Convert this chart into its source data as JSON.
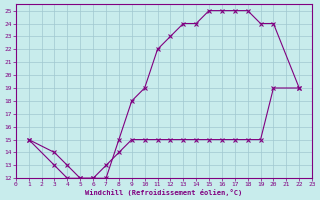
{
  "xlabel": "Windchill (Refroidissement éolien,°C)",
  "bg_color": "#c8ecec",
  "line_color": "#800080",
  "grid_color": "#a0c8d0",
  "xlim": [
    0,
    23
  ],
  "ylim": [
    12,
    25.5
  ],
  "xticks": [
    0,
    1,
    2,
    3,
    4,
    5,
    6,
    7,
    8,
    9,
    10,
    11,
    12,
    13,
    14,
    15,
    16,
    17,
    18,
    19,
    20,
    21,
    22,
    23
  ],
  "yticks": [
    12,
    13,
    14,
    15,
    16,
    17,
    18,
    19,
    20,
    21,
    22,
    23,
    24,
    25
  ],
  "upper_x": [
    1,
    3,
    4,
    5,
    6,
    7,
    8,
    9,
    10,
    11,
    12,
    13,
    14,
    15,
    16,
    17,
    18,
    19,
    20,
    22
  ],
  "upper_y": [
    15,
    14,
    13,
    12,
    12,
    12,
    15,
    18,
    19,
    22,
    23,
    24,
    24,
    25,
    25,
    25,
    25,
    24,
    24,
    19
  ],
  "lower_x": [
    1,
    3,
    4,
    5,
    6,
    7,
    8,
    9,
    10,
    11,
    12,
    13,
    14,
    15,
    16,
    17,
    18,
    19,
    20,
    22
  ],
  "lower_y": [
    15,
    13,
    12,
    12,
    12,
    13,
    14,
    15,
    15,
    15,
    15,
    15,
    15,
    15,
    15,
    15,
    15,
    15,
    19,
    19
  ]
}
